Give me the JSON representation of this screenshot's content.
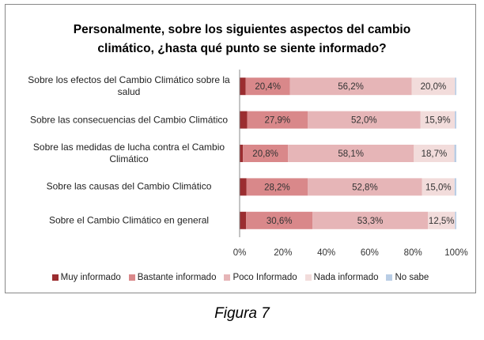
{
  "chart_data": {
    "type": "stacked_bar_horizontal",
    "title": "Personalmente, sobre los siguientes aspectos del cambio climático, ¿hasta qué punto se siente informado?",
    "categories": [
      "Sobre los efectos del Cambio Climático sobre la salud",
      "Sobre las consecuencias del Cambio Climático",
      "Sobre las medidas de lucha contra el Cambio Climático",
      "Sobre las causas del Cambio Climático",
      "Sobre el Cambio Climático en general"
    ],
    "series": [
      {
        "name": "Muy informado",
        "color": "#9b2d30",
        "values": [
          2.8,
          3.5,
          1.5,
          3.2,
          3.0
        ]
      },
      {
        "name": "Bastante informado",
        "color": "#d9888a",
        "values": [
          20.4,
          27.9,
          20.8,
          28.2,
          30.6
        ],
        "value_labels": [
          "20,4%",
          "27,9%",
          "20,8%",
          "28,2%",
          "30,6%"
        ]
      },
      {
        "name": "Poco Informado",
        "color": "#e6b5b7",
        "values": [
          56.2,
          52.0,
          58.1,
          52.8,
          53.3
        ],
        "value_labels": [
          "56,2%",
          "52,0%",
          "58,1%",
          "52,8%",
          "53,3%"
        ]
      },
      {
        "name": "Nada informado",
        "color": "#f2dcdb",
        "values": [
          20.0,
          15.9,
          18.7,
          15.0,
          12.5
        ],
        "value_labels": [
          "20,0%",
          "15,9%",
          "18,7%",
          "15,0%",
          "12,5%"
        ]
      },
      {
        "name": "No sabe",
        "color": "#b9cde5",
        "values": [
          0.6,
          0.7,
          0.9,
          0.8,
          0.6
        ]
      }
    ],
    "xlim": [
      0,
      100
    ],
    "xticks": [
      {
        "value": 0,
        "label": "0%"
      },
      {
        "value": 20,
        "label": "20%"
      },
      {
        "value": 40,
        "label": "40%"
      },
      {
        "value": 60,
        "label": "60%"
      },
      {
        "value": 80,
        "label": "80%"
      },
      {
        "value": 100,
        "label": "100%"
      }
    ],
    "grid": false
  },
  "caption": "Figura 7"
}
